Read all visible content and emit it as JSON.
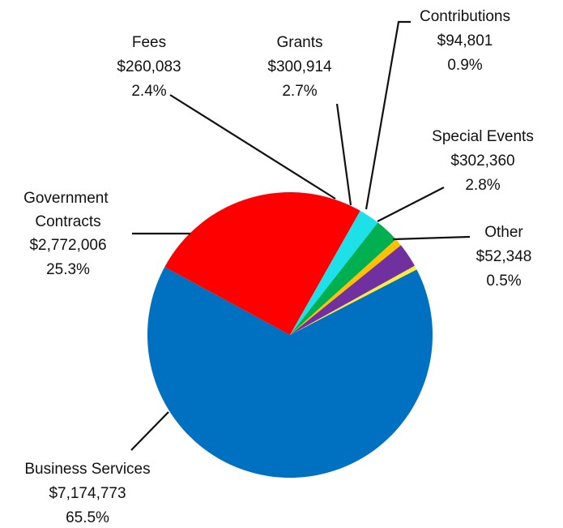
{
  "chart_data": {
    "type": "pie",
    "title": "",
    "direction": "clockwise",
    "start": "top",
    "slices": [
      {
        "name": "Other",
        "value_text": "$52,348",
        "percent_text": "0.5%",
        "value": 52348,
        "color": "#ffeb3b"
      },
      {
        "name": "Business Services",
        "value_text": "$7,174,773",
        "percent_text": "65.5%",
        "value": 7174773,
        "color": "#0070c0"
      },
      {
        "name": "Government Contracts",
        "value_text": "$2,772,006",
        "percent_text": "25.3%",
        "value": 2772006,
        "color": "#ff0000"
      },
      {
        "name": "Fees",
        "value_text": "$260,083",
        "percent_text": "2.4%",
        "value": 260083,
        "color": "#1ee0e8"
      },
      {
        "name": "Grants",
        "value_text": "$300,914",
        "percent_text": "2.7%",
        "value": 300914,
        "color": "#00b050"
      },
      {
        "name": "Contributions",
        "value_text": "$94,801",
        "percent_text": "0.9%",
        "value": 94801,
        "color": "#ffc000"
      },
      {
        "name": "Special Events",
        "value_text": "$302,360",
        "percent_text": "2.8%",
        "value": 302360,
        "color": "#7030a0"
      }
    ]
  }
}
